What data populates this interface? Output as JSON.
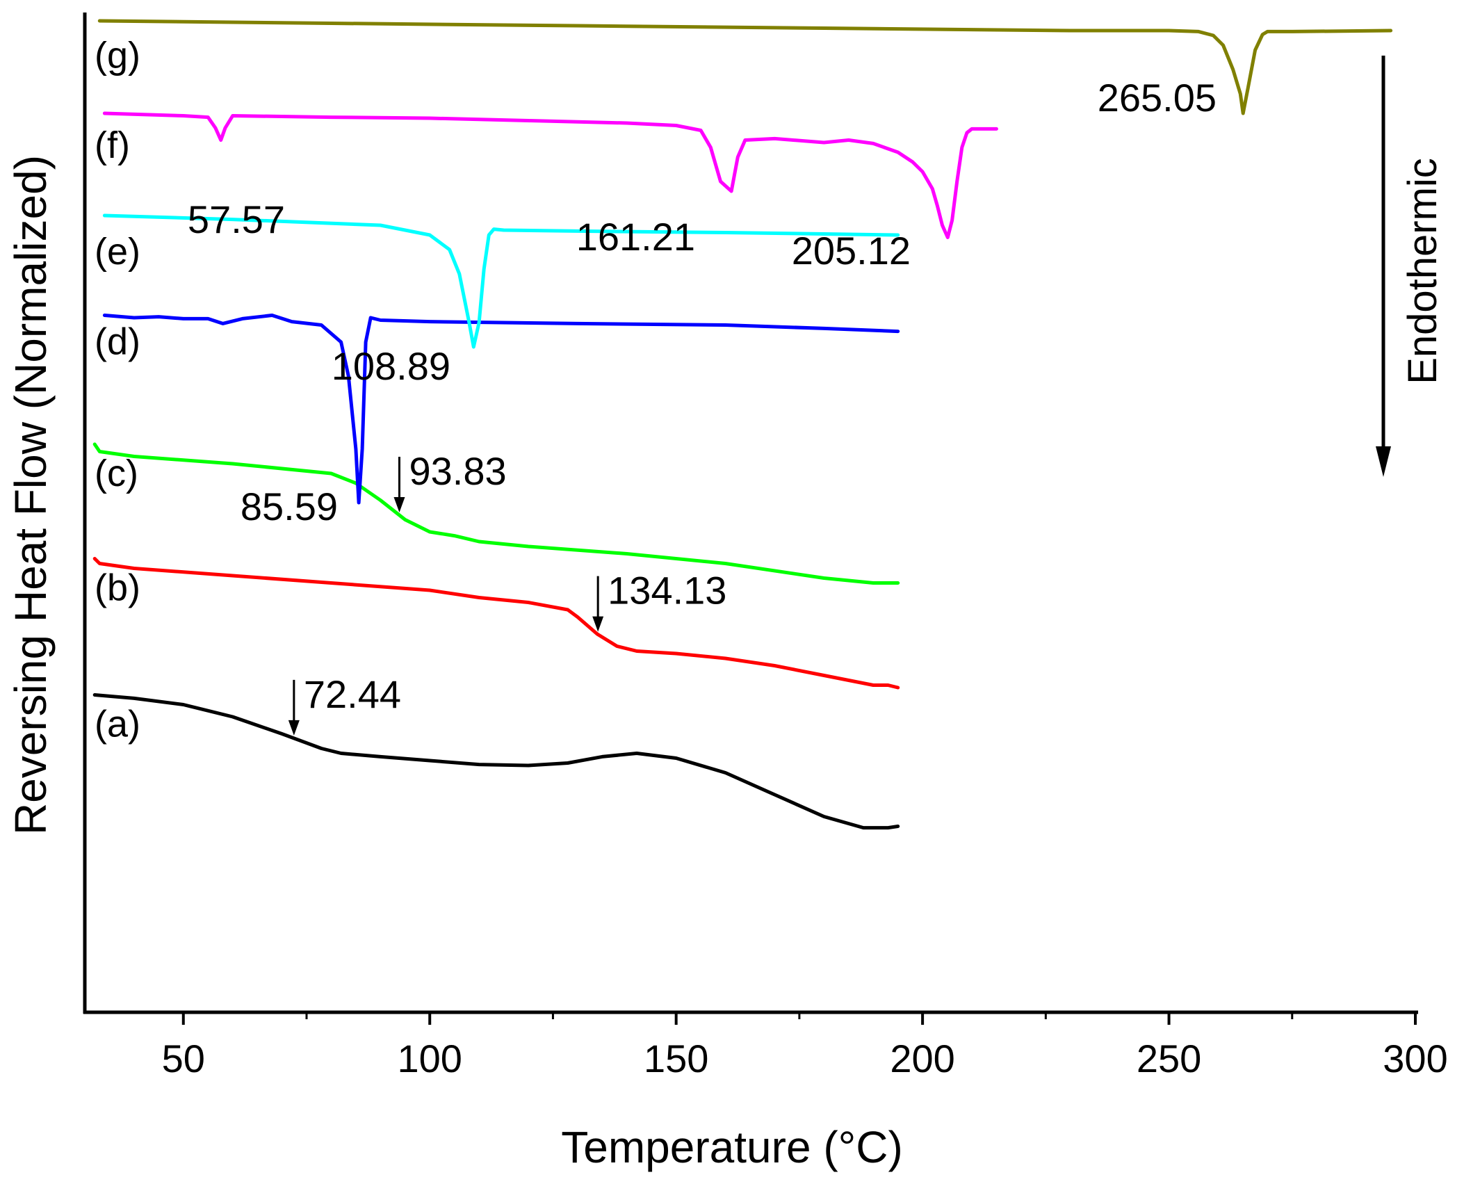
{
  "chart_data": {
    "type": "line",
    "title": "",
    "xlabel": "Temperature (°C)",
    "ylabel": "Reversing Heat Flow (Normalized)",
    "xlim": [
      30,
      300
    ],
    "xticks": [
      50,
      100,
      150,
      200,
      250,
      300
    ],
    "xticks_minor": [
      75,
      125,
      175,
      225,
      275
    ],
    "yticks": [],
    "endothermic_label": "Endothermic",
    "series": [
      {
        "name": "(a)",
        "color": "#000000",
        "x": [
          32,
          40,
          50,
          60,
          70,
          78,
          82,
          90,
          100,
          110,
          120,
          128,
          135,
          142,
          150,
          160,
          170,
          180,
          188,
          193,
          195
        ],
        "y": [
          -8.85,
          -8.92,
          -9.05,
          -9.3,
          -9.65,
          -9.95,
          -10.05,
          -10.12,
          -10.2,
          -10.28,
          -10.3,
          -10.25,
          -10.12,
          -10.05,
          -10.15,
          -10.45,
          -10.9,
          -11.35,
          -11.58,
          -11.58,
          -11.55
        ],
        "annotations": [
          {
            "label": "72.44",
            "x": 72.44,
            "arrow": true
          }
        ]
      },
      {
        "name": "(b)",
        "color": "#ff0000",
        "x": [
          32,
          33,
          40,
          60,
          80,
          100,
          110,
          120,
          128,
          130,
          134,
          138,
          142,
          150,
          160,
          170,
          180,
          190,
          193,
          195
        ],
        "y": [
          -6.05,
          -6.15,
          -6.25,
          -6.4,
          -6.55,
          -6.7,
          -6.85,
          -6.95,
          -7.1,
          -7.25,
          -7.6,
          -7.85,
          -7.95,
          -8.0,
          -8.1,
          -8.25,
          -8.45,
          -8.65,
          -8.65,
          -8.7
        ],
        "annotations": [
          {
            "label": "134.13",
            "x": 134.13,
            "arrow": true
          }
        ]
      },
      {
        "name": "(c)",
        "color": "#00ff00",
        "x": [
          32,
          33,
          40,
          60,
          80,
          85,
          90,
          95,
          100,
          105,
          110,
          120,
          140,
          160,
          180,
          190,
          195
        ],
        "y": [
          -3.7,
          -3.85,
          -3.95,
          -4.1,
          -4.3,
          -4.5,
          -4.85,
          -5.25,
          -5.5,
          -5.58,
          -5.7,
          -5.8,
          -5.95,
          -6.15,
          -6.45,
          -6.55,
          -6.55
        ],
        "annotations": [
          {
            "label": "93.83",
            "x": 93.83,
            "arrow": true
          }
        ]
      },
      {
        "name": "(d)",
        "color": "#0000ff",
        "x": [
          34,
          40,
          45,
          50,
          55,
          58,
          62,
          68,
          72,
          78,
          82,
          83.5,
          85,
          85.6,
          86.3,
          87,
          88,
          90,
          100,
          130,
          160,
          180,
          195
        ],
        "y": [
          -1.05,
          -1.1,
          -1.08,
          -1.12,
          -1.12,
          -1.22,
          -1.12,
          -1.05,
          -1.18,
          -1.25,
          -1.6,
          -2.3,
          -3.8,
          -4.9,
          -3.8,
          -1.6,
          -1.1,
          -1.15,
          -1.18,
          -1.22,
          -1.25,
          -1.32,
          -1.38
        ],
        "annotations": [
          {
            "label": "85.59",
            "x": 85.59,
            "arrow": false
          }
        ]
      },
      {
        "name": "(e)",
        "color": "#00ffff",
        "x": [
          34,
          60,
          90,
          100,
          104,
          106,
          108,
          108.9,
          110,
          111,
          112,
          113,
          115,
          130,
          160,
          195
        ],
        "y": [
          1.0,
          0.92,
          0.8,
          0.6,
          0.3,
          -0.2,
          -1.2,
          -1.7,
          -1.2,
          -0.1,
          0.6,
          0.72,
          0.7,
          0.68,
          0.65,
          0.6
        ],
        "annotations": [
          {
            "label": "108.89",
            "x": 108.89,
            "arrow": false
          }
        ]
      },
      {
        "name": "(f)",
        "color": "#ff00ff",
        "x": [
          34,
          50,
          55,
          56.5,
          57.6,
          58.5,
          60,
          80,
          100,
          120,
          140,
          150,
          155,
          157,
          159,
          161.2,
          162.5,
          164,
          170,
          180,
          185,
          190,
          195,
          198,
          200,
          202,
          203,
          204,
          205.1,
          206,
          207,
          208,
          209,
          210,
          215
        ],
        "y": [
          3.1,
          3.05,
          3.02,
          2.8,
          2.55,
          2.8,
          3.05,
          3.02,
          3.0,
          2.95,
          2.9,
          2.85,
          2.75,
          2.4,
          1.7,
          1.5,
          2.2,
          2.55,
          2.58,
          2.5,
          2.55,
          2.48,
          2.3,
          2.1,
          1.9,
          1.55,
          1.2,
          0.8,
          0.55,
          0.9,
          1.7,
          2.4,
          2.7,
          2.78,
          2.78
        ],
        "annotations": [
          {
            "label": "57.57",
            "x": 57.57,
            "arrow": false
          },
          {
            "label": "161.21",
            "x": 161.21,
            "arrow": false
          },
          {
            "label": "205.12",
            "x": 205.12,
            "arrow": false
          }
        ]
      },
      {
        "name": "(g)",
        "color": "#808000",
        "x": [
          33,
          80,
          130,
          180,
          230,
          250,
          256,
          259,
          261,
          263,
          264.5,
          265.05,
          266,
          267.5,
          269,
          270,
          275,
          295
        ],
        "y": [
          5.0,
          4.95,
          4.9,
          4.85,
          4.8,
          4.8,
          4.78,
          4.7,
          4.5,
          4.0,
          3.5,
          3.1,
          3.6,
          4.4,
          4.72,
          4.78,
          4.78,
          4.8
        ],
        "annotations": [
          {
            "label": "265.05",
            "x": 265.05,
            "arrow": false
          }
        ]
      }
    ]
  }
}
